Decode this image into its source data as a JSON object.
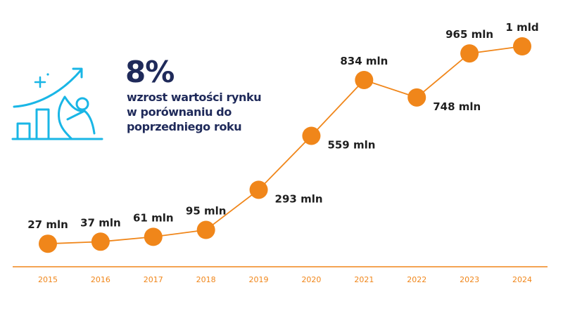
{
  "headline": {
    "value": "8%",
    "text": "wzrost wartości rynku w porównaniu do poprzedniego roku"
  },
  "icon": "growth-chart-person-icon",
  "colors": {
    "line": "#f0861a",
    "marker": "#f0861a",
    "axis": "#f0861a",
    "tick_text": "#f0861a",
    "headline": "#1f2a5a",
    "icon": "#19b6e6",
    "label": "#1f1f1f"
  },
  "chart_data": {
    "type": "line",
    "title": "",
    "xlabel": "",
    "ylabel": "",
    "categories": [
      "2015",
      "2016",
      "2017",
      "2018",
      "2019",
      "2020",
      "2021",
      "2022",
      "2023",
      "2024"
    ],
    "series": [
      {
        "values": [
          27,
          37,
          61,
          95,
          293,
          559,
          834,
          748,
          965,
          1000
        ],
        "labels": [
          "27 mln",
          "37 mln",
          "61 mln",
          "95 mln",
          "293 mln",
          "559 mln",
          "834 mln",
          "748 mln",
          "965 mln",
          "1 mld"
        ],
        "label_positions": [
          "above",
          "above",
          "above",
          "above",
          "right",
          "right",
          "above",
          "right",
          "above",
          "above"
        ]
      }
    ],
    "ylim": [
      0,
      1000
    ],
    "grid": false,
    "legend": "none"
  }
}
